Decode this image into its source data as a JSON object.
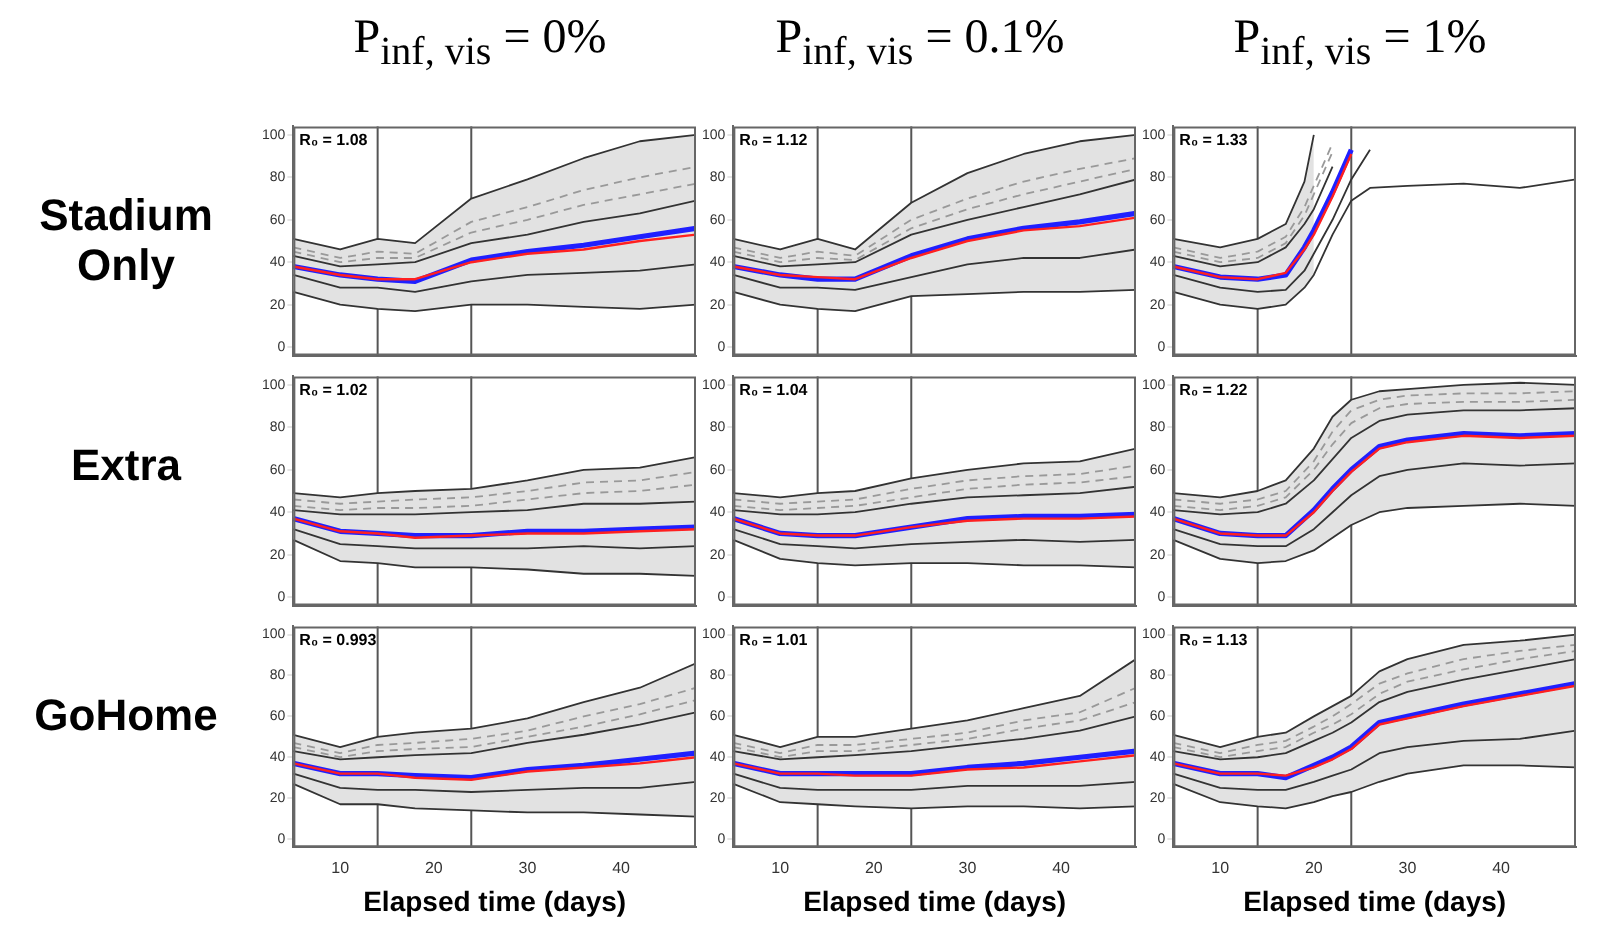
{
  "chart_data": [
    {
      "type": "line",
      "title": "P$_{inf, vis}$ = 0%",
      "ylabel": "Stadium Only",
      "annotations": [
        "R₀ = 1.08"
      ],
      "x": [
        5,
        10,
        14,
        18,
        24,
        30,
        36,
        42,
        48
      ],
      "xlim": [
        5,
        48
      ],
      "xticks": [
        10,
        20,
        30,
        40
      ],
      "ylim": [
        -4,
        104
      ],
      "yticks": [
        0,
        20,
        40,
        60,
        80,
        100
      ],
      "tick_labels": "y",
      "grid": false,
      "legend": false,
      "marker": "none",
      "ref_lines": [
        {
          "axis": "x",
          "value": 14,
          "color": "#555555"
        },
        {
          "axis": "x",
          "value": 24,
          "color": "#555555"
        }
      ],
      "series": [
        {
          "color": "#333333",
          "values": [
            51,
            46,
            51,
            49,
            70,
            79,
            89,
            97,
            100
          ]
        },
        {
          "color": "#333333",
          "values": [
            26,
            20,
            18,
            17,
            20,
            20,
            19,
            18,
            20
          ]
        },
        {
          "color": "#999999",
          "line_style": "dashed",
          "values": [
            47,
            42,
            45,
            44,
            59,
            66,
            74,
            80,
            85
          ]
        },
        {
          "color": "#999999",
          "line_style": "dashed",
          "values": [
            45,
            40,
            42,
            42,
            54,
            60,
            67,
            72,
            77
          ]
        },
        {
          "color": "#333333",
          "values": [
            43,
            38,
            39,
            40,
            49,
            53,
            59,
            63,
            69
          ]
        },
        {
          "color": "#333333",
          "values": [
            34,
            28,
            28,
            26,
            31,
            34,
            35,
            36,
            39
          ]
        },
        {
          "color": "#ff2020",
          "values": [
            38,
            34,
            32,
            32,
            40,
            44,
            46,
            50,
            53
          ],
          "lower": [
            26,
            20,
            18,
            17,
            20,
            20,
            19,
            18,
            20
          ],
          "upper": [
            51,
            46,
            51,
            49,
            70,
            79,
            89,
            97,
            100
          ]
        },
        {
          "color": "#2020ff",
          "values": [
            38,
            34,
            32,
            31,
            41,
            45,
            48,
            52,
            56
          ]
        }
      ]
    },
    {
      "type": "line",
      "title": "P$_{inf, vis}$ = 0.1%",
      "annotations": [
        "R₀ = 1.12"
      ],
      "x": [
        5,
        10,
        14,
        18,
        24,
        30,
        36,
        42,
        48
      ],
      "xlim": [
        5,
        48
      ],
      "xticks": [
        10,
        20,
        30,
        40
      ],
      "ylim": [
        -4,
        104
      ],
      "yticks": [
        0,
        20,
        40,
        60,
        80,
        100
      ],
      "tick_labels": "y",
      "grid": false,
      "legend": false,
      "marker": "none",
      "ref_lines": [
        {
          "axis": "x",
          "value": 14,
          "color": "#555555"
        },
        {
          "axis": "x",
          "value": 24,
          "color": "#555555"
        }
      ],
      "series": [
        {
          "color": "#333333",
          "values": [
            51,
            46,
            51,
            46,
            68,
            82,
            91,
            97,
            100
          ]
        },
        {
          "color": "#333333",
          "values": [
            26,
            20,
            18,
            17,
            24,
            25,
            26,
            26,
            27
          ]
        },
        {
          "color": "#999999",
          "line_style": "dashed",
          "values": [
            47,
            42,
            45,
            43,
            60,
            70,
            78,
            84,
            89
          ]
        },
        {
          "color": "#999999",
          "line_style": "dashed",
          "values": [
            45,
            40,
            42,
            41,
            56,
            65,
            72,
            78,
            84
          ]
        },
        {
          "color": "#333333",
          "values": [
            43,
            38,
            39,
            40,
            53,
            60,
            66,
            72,
            79
          ]
        },
        {
          "color": "#333333",
          "values": [
            34,
            28,
            28,
            27,
            33,
            39,
            42,
            42,
            46
          ]
        },
        {
          "color": "#ff2020",
          "values": [
            38,
            34,
            33,
            32,
            42,
            50,
            55,
            57,
            61
          ],
          "lower": [
            26,
            20,
            18,
            17,
            24,
            25,
            26,
            26,
            27
          ],
          "upper": [
            51,
            46,
            51,
            46,
            68,
            82,
            91,
            97,
            100
          ]
        },
        {
          "color": "#2020ff",
          "values": [
            38,
            34,
            32,
            32,
            43,
            51,
            56,
            59,
            63
          ]
        }
      ]
    },
    {
      "type": "line",
      "title": "P$_{inf, vis}$ = 1%",
      "annotations": [
        "R₀ = 1.33"
      ],
      "x": [
        5,
        10,
        14,
        17,
        19,
        20,
        22,
        24,
        26,
        30,
        36,
        42,
        48
      ],
      "xlim": [
        5,
        48
      ],
      "xticks": [
        10,
        20,
        30,
        40
      ],
      "ylim": [
        -4,
        104
      ],
      "yticks": [
        0,
        20,
        40,
        60,
        80,
        100
      ],
      "tick_labels": "y",
      "grid": false,
      "legend": false,
      "marker": "none",
      "ref_lines": [
        {
          "axis": "x",
          "value": 14,
          "color": "#555555"
        },
        {
          "axis": "x",
          "value": 24,
          "color": "#555555"
        }
      ],
      "series": [
        {
          "color": "#333333",
          "values": [
            51,
            47,
            51,
            58,
            78,
            100,
            null,
            null,
            null,
            null,
            null,
            null,
            null
          ]
        },
        {
          "color": "#333333",
          "values": [
            26,
            20,
            18,
            20,
            28,
            34,
            53,
            69,
            75,
            76,
            77,
            75,
            79
          ]
        },
        {
          "color": "#999999",
          "line_style": "dashed",
          "values": [
            47,
            42,
            45,
            52,
            66,
            76,
            96,
            null,
            null,
            null,
            null,
            null,
            null
          ]
        },
        {
          "color": "#999999",
          "line_style": "dashed",
          "values": [
            45,
            40,
            42,
            49,
            62,
            72,
            92,
            null,
            null,
            null,
            null,
            null,
            null
          ]
        },
        {
          "color": "#333333",
          "values": [
            43,
            38,
            40,
            47,
            58,
            65,
            85,
            null,
            null,
            null,
            null,
            null,
            null
          ]
        },
        {
          "color": "#333333",
          "values": [
            34,
            28,
            26,
            27,
            36,
            44,
            60,
            79,
            93,
            null,
            null,
            null,
            null
          ]
        },
        {
          "color": "#ff2020",
          "values": [
            38,
            33,
            32,
            35,
            46,
            53,
            71,
            91,
            null,
            null,
            null,
            null,
            null
          ],
          "lower": [
            26,
            20,
            18,
            20,
            28,
            34,
            null,
            null,
            null,
            null,
            null,
            null,
            null
          ],
          "upper": [
            51,
            47,
            51,
            58,
            78,
            100,
            null,
            null,
            null,
            null,
            null,
            null,
            null
          ]
        },
        {
          "color": "#2020ff",
          "values": [
            38,
            33,
            32,
            34,
            47,
            55,
            73,
            93,
            null,
            null,
            null,
            null,
            null
          ]
        }
      ]
    },
    {
      "type": "line",
      "ylabel": "Extra",
      "annotations": [
        "R₀ = 1.02"
      ],
      "x": [
        5,
        10,
        14,
        18,
        24,
        30,
        36,
        42,
        48
      ],
      "xlim": [
        5,
        48
      ],
      "xticks": [
        10,
        20,
        30,
        40
      ],
      "ylim": [
        -4,
        104
      ],
      "yticks": [
        0,
        20,
        40,
        60,
        80,
        100
      ],
      "tick_labels": "y",
      "grid": false,
      "legend": false,
      "marker": "none",
      "ref_lines": [
        {
          "axis": "x",
          "value": 14,
          "color": "#555555"
        },
        {
          "axis": "x",
          "value": 24,
          "color": "#555555"
        }
      ],
      "series": [
        {
          "color": "#333333",
          "values": [
            49,
            47,
            49,
            50,
            51,
            55,
            60,
            61,
            66
          ]
        },
        {
          "color": "#333333",
          "values": [
            27,
            17,
            16,
            14,
            14,
            13,
            11,
            11,
            10
          ]
        },
        {
          "color": "#999999",
          "line_style": "dashed",
          "values": [
            46,
            44,
            45,
            46,
            47,
            50,
            54,
            55,
            59
          ]
        },
        {
          "color": "#999999",
          "line_style": "dashed",
          "values": [
            43,
            41,
            42,
            42,
            43,
            46,
            49,
            50,
            53
          ]
        },
        {
          "color": "#333333",
          "values": [
            41,
            39,
            39,
            39,
            40,
            41,
            44,
            44,
            45
          ]
        },
        {
          "color": "#333333",
          "values": [
            32,
            25,
            24,
            23,
            23,
            23,
            24,
            23,
            24
          ]
        },
        {
          "color": "#ff2020",
          "values": [
            37,
            31,
            30,
            28,
            29,
            30,
            30,
            31,
            32
          ],
          "lower": [
            27,
            17,
            16,
            14,
            14,
            13,
            11,
            11,
            10
          ],
          "upper": [
            49,
            47,
            49,
            50,
            51,
            55,
            60,
            61,
            66
          ]
        },
        {
          "color": "#2020ff",
          "values": [
            37,
            31,
            30,
            29,
            29,
            31,
            31,
            32,
            33
          ]
        }
      ]
    },
    {
      "type": "line",
      "annotations": [
        "R₀ = 1.04"
      ],
      "x": [
        5,
        10,
        14,
        18,
        24,
        30,
        36,
        42,
        48
      ],
      "xlim": [
        5,
        48
      ],
      "xticks": [
        10,
        20,
        30,
        40
      ],
      "ylim": [
        -4,
        104
      ],
      "yticks": [
        0,
        20,
        40,
        60,
        80,
        100
      ],
      "tick_labels": "y",
      "grid": false,
      "legend": false,
      "marker": "none",
      "ref_lines": [
        {
          "axis": "x",
          "value": 14,
          "color": "#555555"
        },
        {
          "axis": "x",
          "value": 24,
          "color": "#555555"
        }
      ],
      "series": [
        {
          "color": "#333333",
          "values": [
            49,
            47,
            49,
            50,
            56,
            60,
            63,
            64,
            70
          ]
        },
        {
          "color": "#333333",
          "values": [
            27,
            18,
            16,
            15,
            16,
            16,
            15,
            15,
            14
          ]
        },
        {
          "color": "#999999",
          "line_style": "dashed",
          "values": [
            46,
            44,
            45,
            46,
            51,
            55,
            57,
            58,
            62
          ]
        },
        {
          "color": "#999999",
          "line_style": "dashed",
          "values": [
            43,
            41,
            42,
            43,
            47,
            51,
            53,
            54,
            57
          ]
        },
        {
          "color": "#333333",
          "values": [
            41,
            39,
            39,
            40,
            44,
            47,
            48,
            49,
            52
          ]
        },
        {
          "color": "#333333",
          "values": [
            32,
            25,
            24,
            23,
            25,
            26,
            27,
            26,
            27
          ]
        },
        {
          "color": "#ff2020",
          "values": [
            37,
            30,
            29,
            29,
            33,
            36,
            37,
            37,
            38
          ],
          "lower": [
            27,
            18,
            16,
            15,
            16,
            16,
            15,
            15,
            14
          ],
          "upper": [
            49,
            47,
            49,
            50,
            56,
            60,
            63,
            64,
            70
          ]
        },
        {
          "color": "#2020ff",
          "values": [
            37,
            30,
            29,
            29,
            33,
            37,
            38,
            38,
            39
          ]
        }
      ]
    },
    {
      "type": "line",
      "annotations": [
        "R₀ = 1.22"
      ],
      "x": [
        5,
        10,
        14,
        17,
        20,
        22,
        24,
        27,
        30,
        36,
        42,
        48
      ],
      "xlim": [
        5,
        48
      ],
      "xticks": [
        10,
        20,
        30,
        40
      ],
      "ylim": [
        -4,
        104
      ],
      "yticks": [
        0,
        20,
        40,
        60,
        80,
        100
      ],
      "tick_labels": "y",
      "grid": false,
      "legend": false,
      "marker": "none",
      "ref_lines": [
        {
          "axis": "x",
          "value": 14,
          "color": "#555555"
        },
        {
          "axis": "x",
          "value": 24,
          "color": "#555555"
        }
      ],
      "series": [
        {
          "color": "#333333",
          "values": [
            49,
            47,
            50,
            55,
            70,
            85,
            93,
            97,
            98,
            100,
            101,
            100
          ]
        },
        {
          "color": "#333333",
          "values": [
            27,
            18,
            16,
            17,
            22,
            28,
            34,
            40,
            42,
            43,
            44,
            43
          ]
        },
        {
          "color": "#999999",
          "line_style": "dashed",
          "values": [
            46,
            44,
            46,
            50,
            64,
            78,
            88,
            93,
            95,
            96,
            96,
            97
          ]
        },
        {
          "color": "#999999",
          "line_style": "dashed",
          "values": [
            43,
            41,
            43,
            47,
            60,
            72,
            82,
            89,
            91,
            92,
            92,
            93
          ]
        },
        {
          "color": "#333333",
          "values": [
            41,
            39,
            40,
            44,
            55,
            65,
            75,
            83,
            86,
            88,
            88,
            89
          ]
        },
        {
          "color": "#333333",
          "values": [
            32,
            25,
            24,
            24,
            32,
            40,
            48,
            57,
            60,
            63,
            62,
            63
          ]
        },
        {
          "color": "#ff2020",
          "values": [
            37,
            30,
            29,
            29,
            40,
            50,
            59,
            70,
            73,
            76,
            75,
            76
          ],
          "lower": [
            27,
            18,
            16,
            17,
            22,
            28,
            34,
            40,
            42,
            43,
            44,
            43
          ],
          "upper": [
            49,
            47,
            50,
            55,
            70,
            85,
            93,
            97,
            98,
            100,
            101,
            100
          ]
        },
        {
          "color": "#2020ff",
          "values": [
            37,
            30,
            29,
            29,
            41,
            51,
            60,
            71,
            74,
            77,
            76,
            77
          ]
        }
      ]
    },
    {
      "type": "line",
      "ylabel": "GoHome",
      "xlabel": "Elapsed time (days)",
      "annotations": [
        "R₀ = 0.993"
      ],
      "x": [
        5,
        10,
        14,
        18,
        24,
        30,
        36,
        42,
        48
      ],
      "xlim": [
        5,
        48
      ],
      "xticks": [
        10,
        20,
        30,
        40
      ],
      "ylim": [
        -4,
        104
      ],
      "yticks": [
        0,
        20,
        40,
        60,
        80,
        100
      ],
      "grid": false,
      "legend": false,
      "marker": "none",
      "ref_lines": [
        {
          "axis": "x",
          "value": 14,
          "color": "#555555"
        },
        {
          "axis": "x",
          "value": 24,
          "color": "#555555"
        }
      ],
      "series": [
        {
          "color": "#333333",
          "values": [
            51,
            45,
            50,
            52,
            54,
            59,
            67,
            74,
            86
          ]
        },
        {
          "color": "#333333",
          "values": [
            27,
            17,
            17,
            15,
            14,
            13,
            13,
            12,
            11
          ]
        },
        {
          "color": "#999999",
          "line_style": "dashed",
          "values": [
            47,
            42,
            46,
            47,
            49,
            53,
            60,
            66,
            74
          ]
        },
        {
          "color": "#999999",
          "line_style": "dashed",
          "values": [
            45,
            40,
            43,
            44,
            45,
            50,
            55,
            61,
            68
          ]
        },
        {
          "color": "#333333",
          "values": [
            43,
            39,
            40,
            41,
            42,
            47,
            51,
            56,
            62
          ]
        },
        {
          "color": "#333333",
          "values": [
            32,
            25,
            24,
            24,
            23,
            24,
            25,
            25,
            28
          ]
        },
        {
          "color": "#ff2020",
          "values": [
            37,
            32,
            32,
            30,
            29,
            33,
            35,
            37,
            40
          ],
          "lower": [
            27,
            17,
            17,
            15,
            14,
            13,
            13,
            12,
            11
          ],
          "upper": [
            51,
            45,
            50,
            52,
            54,
            59,
            67,
            74,
            86
          ]
        },
        {
          "color": "#2020ff",
          "values": [
            37,
            32,
            32,
            31,
            30,
            34,
            36,
            39,
            42
          ]
        }
      ]
    },
    {
      "type": "line",
      "xlabel": "Elapsed time (days)",
      "annotations": [
        "R₀ = 1.01"
      ],
      "x": [
        5,
        10,
        14,
        18,
        24,
        30,
        36,
        42,
        48
      ],
      "xlim": [
        5,
        48
      ],
      "xticks": [
        10,
        20,
        30,
        40
      ],
      "ylim": [
        -4,
        104
      ],
      "yticks": [
        0,
        20,
        40,
        60,
        80,
        100
      ],
      "grid": false,
      "legend": false,
      "marker": "none",
      "ref_lines": [
        {
          "axis": "x",
          "value": 14,
          "color": "#555555"
        },
        {
          "axis": "x",
          "value": 24,
          "color": "#555555"
        }
      ],
      "series": [
        {
          "color": "#333333",
          "values": [
            51,
            45,
            50,
            50,
            54,
            58,
            64,
            70,
            88
          ]
        },
        {
          "color": "#333333",
          "values": [
            27,
            18,
            17,
            16,
            15,
            16,
            16,
            15,
            16
          ]
        },
        {
          "color": "#999999",
          "line_style": "dashed",
          "values": [
            47,
            42,
            46,
            46,
            49,
            52,
            58,
            62,
            74
          ]
        },
        {
          "color": "#999999",
          "line_style": "dashed",
          "values": [
            45,
            40,
            43,
            43,
            46,
            49,
            54,
            58,
            67
          ]
        },
        {
          "color": "#333333",
          "values": [
            43,
            39,
            40,
            41,
            43,
            46,
            49,
            53,
            60
          ]
        },
        {
          "color": "#333333",
          "values": [
            32,
            25,
            24,
            24,
            24,
            26,
            26,
            26,
            28
          ]
        },
        {
          "color": "#ff2020",
          "values": [
            37,
            32,
            32,
            31,
            31,
            34,
            35,
            38,
            41
          ],
          "lower": [
            27,
            18,
            17,
            16,
            15,
            16,
            16,
            15,
            16
          ],
          "upper": [
            51,
            45,
            50,
            50,
            54,
            58,
            64,
            70,
            88
          ]
        },
        {
          "color": "#2020ff",
          "values": [
            37,
            32,
            32,
            32,
            32,
            35,
            37,
            40,
            43
          ]
        }
      ]
    },
    {
      "type": "line",
      "xlabel": "Elapsed time (days)",
      "annotations": [
        "R₀ = 1.13"
      ],
      "x": [
        5,
        10,
        14,
        17,
        20,
        22,
        24,
        27,
        30,
        36,
        42,
        48
      ],
      "xlim": [
        5,
        48
      ],
      "xticks": [
        10,
        20,
        30,
        40
      ],
      "ylim": [
        -4,
        104
      ],
      "yticks": [
        0,
        20,
        40,
        60,
        80,
        100
      ],
      "grid": false,
      "legend": false,
      "marker": "none",
      "ref_lines": [
        {
          "axis": "x",
          "value": 14,
          "color": "#555555"
        },
        {
          "axis": "x",
          "value": 24,
          "color": "#555555"
        }
      ],
      "series": [
        {
          "color": "#333333",
          "values": [
            51,
            45,
            50,
            52,
            60,
            65,
            70,
            82,
            88,
            95,
            97,
            100
          ]
        },
        {
          "color": "#333333",
          "values": [
            27,
            18,
            16,
            15,
            18,
            21,
            23,
            28,
            32,
            36,
            36,
            35
          ]
        },
        {
          "color": "#999999",
          "line_style": "dashed",
          "values": [
            47,
            42,
            46,
            48,
            55,
            60,
            66,
            76,
            81,
            88,
            92,
            95
          ]
        },
        {
          "color": "#999999",
          "line_style": "dashed",
          "values": [
            45,
            40,
            43,
            45,
            52,
            56,
            61,
            71,
            77,
            83,
            88,
            92
          ]
        },
        {
          "color": "#333333",
          "values": [
            43,
            39,
            40,
            42,
            48,
            52,
            57,
            67,
            72,
            78,
            83,
            88
          ]
        },
        {
          "color": "#333333",
          "values": [
            32,
            25,
            24,
            24,
            28,
            31,
            34,
            42,
            45,
            48,
            49,
            53
          ]
        },
        {
          "color": "#ff2020",
          "values": [
            37,
            32,
            32,
            31,
            35,
            39,
            44,
            56,
            59,
            65,
            70,
            75
          ],
          "lower": [
            27,
            18,
            16,
            15,
            18,
            21,
            23,
            28,
            32,
            36,
            36,
            35
          ],
          "upper": [
            51,
            45,
            50,
            52,
            60,
            65,
            70,
            82,
            88,
            95,
            97,
            100
          ]
        },
        {
          "color": "#2020ff",
          "values": [
            37,
            32,
            32,
            30,
            36,
            40,
            45,
            57,
            60,
            66,
            71,
            76
          ]
        }
      ]
    }
  ]
}
